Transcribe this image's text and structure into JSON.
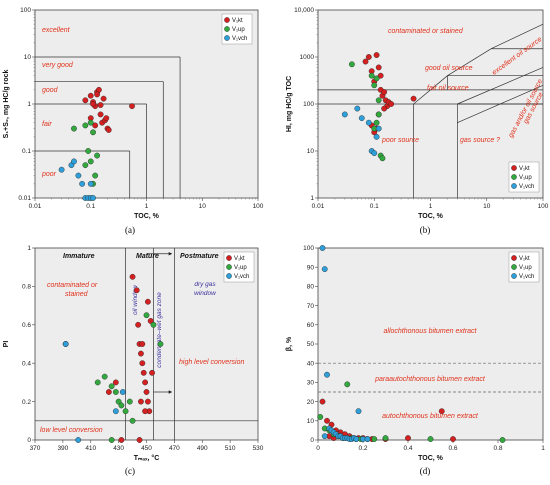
{
  "colors": {
    "Vkt": "#d42020",
    "Vup": "#32a83e",
    "Vvch": "#2e9fd8",
    "plot_bg": "#ededed",
    "region_label": "#e0321c",
    "zone_label": "#3a2f9c"
  },
  "legend": [
    "V₁kt",
    "V₁up",
    "V₁vch"
  ],
  "chart_data": [
    {
      "type": "scatter",
      "caption": "(a)",
      "xlabel": "TOC, %",
      "ylabel": "S₁+S₂, mg HC/g rock",
      "xscale": "log",
      "yscale": "log",
      "xlim": [
        0.01,
        100
      ],
      "ylim": [
        0.01,
        100
      ],
      "xticks": [
        "0.01",
        "0.1",
        "1",
        "10",
        "100"
      ],
      "yticks": [
        "0.01",
        "0.1",
        "1",
        "10",
        "100"
      ],
      "region_labels": [
        "excellent",
        "very good",
        "good",
        "fair",
        "poor"
      ],
      "legend": [
        "V₁kt",
        "V₁up",
        "V₁vch"
      ],
      "series": [
        {
          "name": "V₁kt",
          "x": [
            0.08,
            0.1,
            0.11,
            0.12,
            0.13,
            0.14,
            0.1,
            0.12,
            0.15,
            0.16,
            0.18,
            0.2,
            0.55,
            0.11,
            0.17,
            0.19,
            0.21,
            0.13,
            0.15
          ],
          "y": [
            1.2,
            1.5,
            1.1,
            0.9,
            1.8,
            2.0,
            0.5,
            0.35,
            0.6,
            0.4,
            0.45,
            0.3,
            0.9,
            1.0,
            1.3,
            0.5,
            0.28,
            1.6,
            0.95
          ]
        },
        {
          "name": "V₁up",
          "x": [
            0.05,
            0.08,
            0.09,
            0.1,
            0.11,
            0.12,
            0.1,
            0.08,
            0.13,
            0.11
          ],
          "y": [
            0.3,
            0.05,
            0.1,
            0.06,
            0.02,
            0.03,
            0.4,
            0.35,
            0.08,
            0.25
          ]
        },
        {
          "name": "V₁vch",
          "x": [
            0.03,
            0.045,
            0.05,
            0.06,
            0.07,
            0.08,
            0.09,
            0.1,
            0.1,
            0.11
          ],
          "y": [
            0.04,
            0.05,
            0.06,
            0.03,
            0.02,
            0.01,
            0.01,
            0.02,
            0.01,
            0.01
          ]
        }
      ]
    },
    {
      "type": "scatter",
      "caption": "(b)",
      "xlabel": "TOC, %",
      "ylabel": "HI, mg HC/g TOC",
      "xscale": "log",
      "yscale": "log",
      "xlim": [
        0.01,
        100
      ],
      "ylim": [
        1,
        10000
      ],
      "xticks": [
        "0.01",
        "0.1",
        "1",
        "10",
        "100"
      ],
      "yticks": [
        "1",
        "10",
        "100",
        "1000",
        "10,000"
      ],
      "region_labels": [
        "contaminated or stained",
        "excellent oil source",
        "good oil source",
        "fair oil source",
        "gas and/or oil source",
        "gas source",
        "poor source",
        "gas source ?"
      ],
      "legend": [
        "V₁kt",
        "V₁up",
        "V₁vch"
      ],
      "series": [
        {
          "name": "V₁kt",
          "x": [
            0.07,
            0.08,
            0.09,
            0.1,
            0.11,
            0.12,
            0.13,
            0.14,
            0.15,
            0.16,
            0.17,
            0.18,
            0.2,
            0.09,
            0.11,
            0.12,
            0.5,
            0.13,
            0.15,
            0.1
          ],
          "y": [
            800,
            1000,
            500,
            300,
            1100,
            600,
            200,
            150,
            180,
            120,
            90,
            110,
            100,
            35,
            30,
            60,
            130,
            400,
            80,
            25
          ]
        },
        {
          "name": "V₁up",
          "x": [
            0.04,
            0.09,
            0.1,
            0.11,
            0.12,
            0.13,
            0.14,
            0.1,
            0.12,
            0.11
          ],
          "y": [
            700,
            400,
            250,
            350,
            120,
            8,
            7,
            30,
            60,
            40
          ]
        },
        {
          "name": "V₁vch",
          "x": [
            0.03,
            0.05,
            0.06,
            0.08,
            0.09,
            0.1,
            0.11,
            0.12
          ],
          "y": [
            60,
            80,
            50,
            40,
            10,
            9,
            20,
            30
          ]
        }
      ]
    },
    {
      "type": "scatter",
      "caption": "(c)",
      "xlabel": "Tₘₐₓ, °C",
      "ylabel": "PI",
      "xlim": [
        370,
        530
      ],
      "ylim": [
        0,
        1
      ],
      "xticks": [
        "370",
        "390",
        "410",
        "430",
        "450",
        "470",
        "490",
        "510",
        "530"
      ],
      "yticks": [
        "0",
        "0.2",
        "0.4",
        "0.6",
        "0.8",
        "1"
      ],
      "zone_labels": [
        "Immature",
        "Mature",
        "Postmature"
      ],
      "region_labels": [
        "contaminated or stained",
        "high level conversion",
        "low level conversion"
      ],
      "window_labels": [
        "oil window",
        "condensate–wet gas zone",
        "dry gas window"
      ],
      "legend": [
        "V₁kt",
        "V₁up",
        "V₁vch"
      ],
      "series": [
        {
          "name": "V₁kt",
          "x": [
            392,
            423,
            428,
            440,
            443,
            444,
            445,
            446,
            447,
            448,
            449,
            450,
            451,
            452,
            453,
            454,
            446,
            449,
            451,
            445,
            432,
            447
          ],
          "y": [
            0.5,
            0.25,
            0.3,
            0.85,
            0.78,
            0.6,
            0.5,
            0.45,
            0.4,
            0.35,
            0.3,
            0.25,
            0.2,
            0.15,
            0.62,
            0.35,
            0.2,
            0.15,
            0.72,
            0,
            0,
            0.5
          ]
        },
        {
          "name": "V₁up",
          "x": [
            415,
            420,
            425,
            428,
            430,
            432,
            435,
            440,
            450,
            455,
            460,
            425,
            438
          ],
          "y": [
            0.3,
            0.33,
            0.28,
            0.25,
            0.2,
            0.18,
            0.15,
            0.1,
            0.65,
            0.6,
            0.5,
            0,
            0.2
          ]
        },
        {
          "name": "V₁vch",
          "x": [
            392,
            401,
            428,
            433
          ],
          "y": [
            0.5,
            0,
            0.15,
            0.25
          ]
        }
      ]
    },
    {
      "type": "scatter",
      "caption": "(d)",
      "xlabel": "TOC, %",
      "ylabel": "β, %",
      "xlim": [
        0,
        1
      ],
      "ylim": [
        0,
        100
      ],
      "xticks": [
        "0",
        "0.2",
        "0.4",
        "0.6",
        "0.8",
        "1"
      ],
      "yticks": [
        "0",
        "10",
        "20",
        "30",
        "40",
        "50",
        "60",
        "70",
        "80",
        "90",
        "100"
      ],
      "region_labels": [
        "allochthonous bitumen extract",
        "paraautochthonous bitumen extract",
        "autochthonous bitumen extract"
      ],
      "legend": [
        "V₁kt",
        "V₁up",
        "V₁vch"
      ],
      "series": [
        {
          "name": "V₁kt",
          "x": [
            0.02,
            0.04,
            0.06,
            0.08,
            0.1,
            0.12,
            0.14,
            0.16,
            0.18,
            0.2,
            0.22,
            0.24,
            0.3,
            0.4,
            0.55,
            0.6,
            0.05,
            0.07,
            0.09
          ],
          "y": [
            20,
            10,
            8,
            5,
            4,
            3,
            2,
            1,
            1,
            1,
            0.5,
            0.5,
            0.5,
            1,
            15,
            0.5,
            2,
            1,
            3
          ]
        },
        {
          "name": "V₁up",
          "x": [
            0.01,
            0.03,
            0.05,
            0.07,
            0.09,
            0.11,
            0.13,
            0.15,
            0.17,
            0.19,
            0.25,
            0.3,
            0.5,
            0.82
          ],
          "y": [
            12,
            6,
            5,
            3,
            2,
            1,
            29,
            1,
            0.5,
            0.5,
            0.5,
            1,
            0.5,
            0
          ]
        },
        {
          "name": "V₁vch",
          "x": [
            0.02,
            0.03,
            0.04,
            0.05,
            0.06,
            0.07,
            0.08,
            0.09,
            0.1,
            0.11,
            0.12,
            0.13,
            0.14,
            0.15,
            0.16,
            0.17,
            0.18,
            0.2,
            0.22,
            0.03
          ],
          "y": [
            100,
            89,
            34,
            6,
            5,
            4,
            3,
            2,
            2,
            1,
            1,
            1,
            0.5,
            0.5,
            1,
            0.5,
            15,
            0.5,
            0.5,
            2
          ]
        }
      ]
    }
  ]
}
